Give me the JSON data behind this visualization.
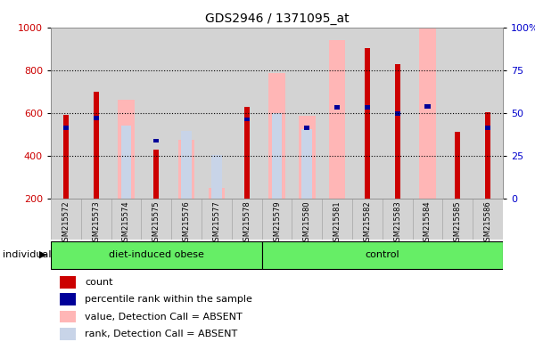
{
  "title": "GDS2946 / 1371095_at",
  "samples": [
    "GSM215572",
    "GSM215573",
    "GSM215574",
    "GSM215575",
    "GSM215576",
    "GSM215577",
    "GSM215578",
    "GSM215579",
    "GSM215580",
    "GSM215581",
    "GSM215582",
    "GSM215583",
    "GSM215584",
    "GSM215585",
    "GSM215586"
  ],
  "groups": [
    "diet-induced obese",
    "diet-induced obese",
    "diet-induced obese",
    "diet-induced obese",
    "diet-induced obese",
    "diet-induced obese",
    "diet-induced obese",
    "control",
    "control",
    "control",
    "control",
    "control",
    "control",
    "control",
    "control"
  ],
  "count_values": [
    590,
    700,
    null,
    430,
    null,
    null,
    630,
    null,
    null,
    null,
    905,
    830,
    null,
    510,
    605
  ],
  "percentile_values": [
    530,
    575,
    null,
    470,
    null,
    null,
    570,
    null,
    530,
    625,
    625,
    597,
    630,
    null,
    530
  ],
  "absent_value_bars": [
    null,
    null,
    660,
    null,
    475,
    250,
    null,
    785,
    585,
    940,
    null,
    null,
    995,
    null,
    null
  ],
  "absent_rank_bars": [
    null,
    null,
    540,
    null,
    515,
    405,
    null,
    597,
    525,
    null,
    null,
    null,
    null,
    null,
    null
  ],
  "ylim": [
    200,
    1000
  ],
  "yticks_left": [
    200,
    400,
    600,
    800,
    1000
  ],
  "yticks_right_pct": [
    0,
    25,
    50,
    75,
    100
  ],
  "count_color": "#cc0000",
  "percentile_color": "#000099",
  "absent_value_color": "#ffb6b6",
  "absent_rank_color": "#c8d4e8",
  "plot_bg_color": "#ffffff",
  "axes_bg_color": "#d3d3d3",
  "group_color": "#66ee66",
  "ylabel_left_color": "#cc0000",
  "ylabel_right_color": "#0000cc"
}
